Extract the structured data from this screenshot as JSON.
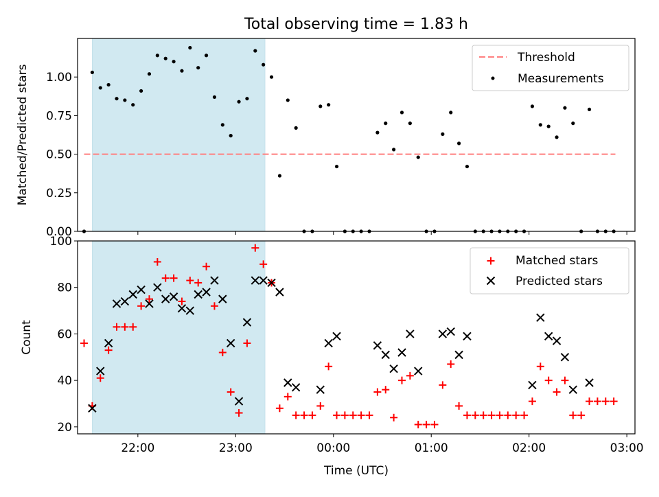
{
  "figure_title": "Total observing time = 1.83 h",
  "chart_data": [
    {
      "type": "scatter",
      "title": "Total observing time = 1.83 h",
      "xlabel": "",
      "ylabel": "Matched/Predicted stars",
      "x_unit": "time (UTC) HH:MM",
      "xlim": [
        "21:23",
        "03:05"
      ],
      "ylim": [
        0.0,
        1.25
      ],
      "yticks": [
        0.0,
        0.25,
        0.5,
        0.75,
        1.0
      ],
      "ytick_labels": [
        "0.00",
        "0.25",
        "0.50",
        "0.75",
        "1.00"
      ],
      "shaded_interval": [
        "21:32",
        "23:18"
      ],
      "shaded_color": "#add8e6",
      "legend_position": "upper right",
      "threshold": {
        "name": "Threshold",
        "y": 0.5,
        "x_range": [
          "21:27",
          "02:53"
        ],
        "color": "#ff7f7f",
        "style": "dashed"
      },
      "series": [
        {
          "name": "Measurements",
          "marker": "dot",
          "color": "#000000",
          "points": [
            [
              "21:27",
              0.0
            ],
            [
              "21:32",
              1.03
            ],
            [
              "21:37",
              0.93
            ],
            [
              "21:42",
              0.95
            ],
            [
              "21:47",
              0.86
            ],
            [
              "21:52",
              0.85
            ],
            [
              "21:57",
              0.82
            ],
            [
              "22:02",
              0.91
            ],
            [
              "22:07",
              1.02
            ],
            [
              "22:12",
              1.14
            ],
            [
              "22:17",
              1.12
            ],
            [
              "22:22",
              1.1
            ],
            [
              "22:27",
              1.04
            ],
            [
              "22:32",
              1.19
            ],
            [
              "22:37",
              1.06
            ],
            [
              "22:42",
              1.14
            ],
            [
              "22:47",
              0.87
            ],
            [
              "22:52",
              0.69
            ],
            [
              "22:57",
              0.62
            ],
            [
              "23:02",
              0.84
            ],
            [
              "23:07",
              0.86
            ],
            [
              "23:12",
              1.17
            ],
            [
              "23:17",
              1.08
            ],
            [
              "23:22",
              1.0
            ],
            [
              "23:27",
              0.36
            ],
            [
              "23:32",
              0.85
            ],
            [
              "23:37",
              0.67
            ],
            [
              "23:42",
              0.0
            ],
            [
              "23:47",
              0.0
            ],
            [
              "23:52",
              0.81
            ],
            [
              "23:57",
              0.82
            ],
            [
              "00:02",
              0.42
            ],
            [
              "00:07",
              0.0
            ],
            [
              "00:12",
              0.0
            ],
            [
              "00:17",
              0.0
            ],
            [
              "00:22",
              0.0
            ],
            [
              "00:27",
              0.64
            ],
            [
              "00:32",
              0.7
            ],
            [
              "00:37",
              0.53
            ],
            [
              "00:42",
              0.77
            ],
            [
              "00:47",
              0.7
            ],
            [
              "00:52",
              0.48
            ],
            [
              "00:57",
              0.0
            ],
            [
              "01:02",
              0.0
            ],
            [
              "01:07",
              0.63
            ],
            [
              "01:12",
              0.77
            ],
            [
              "01:17",
              0.57
            ],
            [
              "01:22",
              0.42
            ],
            [
              "01:27",
              0.0
            ],
            [
              "01:32",
              0.0
            ],
            [
              "01:37",
              0.0
            ],
            [
              "01:42",
              0.0
            ],
            [
              "01:47",
              0.0
            ],
            [
              "01:52",
              0.0
            ],
            [
              "01:57",
              0.0
            ],
            [
              "02:02",
              0.81
            ],
            [
              "02:07",
              0.69
            ],
            [
              "02:12",
              0.68
            ],
            [
              "02:17",
              0.61
            ],
            [
              "02:22",
              0.8
            ],
            [
              "02:27",
              0.7
            ],
            [
              "02:32",
              0.0
            ],
            [
              "02:37",
              0.79
            ],
            [
              "02:42",
              0.0
            ],
            [
              "02:47",
              0.0
            ],
            [
              "02:52",
              0.0
            ]
          ]
        }
      ]
    },
    {
      "type": "scatter",
      "title": "",
      "xlabel": "Time (UTC)",
      "ylabel": "Count",
      "x_unit": "time (UTC) HH:MM",
      "xlim": [
        "21:23",
        "03:05"
      ],
      "ylim": [
        17,
        100
      ],
      "yticks": [
        20,
        40,
        60,
        80,
        100
      ],
      "ytick_labels": [
        "20",
        "40",
        "60",
        "80",
        "100"
      ],
      "xticks": [
        "22:00",
        "23:00",
        "00:00",
        "01:00",
        "02:00",
        "03:00"
      ],
      "xtick_labels": [
        "22:00",
        "23:00",
        "00:00",
        "01:00",
        "02:00",
        "03:00"
      ],
      "shaded_interval": [
        "21:32",
        "23:18"
      ],
      "shaded_color": "#add8e6",
      "legend_position": "upper right",
      "series": [
        {
          "name": "Matched stars",
          "marker": "plus",
          "color": "#ff0000",
          "points": [
            [
              "21:27",
              56
            ],
            [
              "21:32",
              29
            ],
            [
              "21:37",
              41
            ],
            [
              "21:42",
              53
            ],
            [
              "21:47",
              63
            ],
            [
              "21:52",
              63
            ],
            [
              "21:57",
              63
            ],
            [
              "22:02",
              72
            ],
            [
              "22:07",
              75
            ],
            [
              "22:12",
              91
            ],
            [
              "22:17",
              84
            ],
            [
              "22:22",
              84
            ],
            [
              "22:27",
              74
            ],
            [
              "22:32",
              83
            ],
            [
              "22:37",
              82
            ],
            [
              "22:42",
              89
            ],
            [
              "22:47",
              72
            ],
            [
              "22:52",
              52
            ],
            [
              "22:57",
              35
            ],
            [
              "23:02",
              26
            ],
            [
              "23:07",
              56
            ],
            [
              "23:12",
              97
            ],
            [
              "23:17",
              90
            ],
            [
              "23:22",
              82
            ],
            [
              "23:27",
              28
            ],
            [
              "23:32",
              33
            ],
            [
              "23:37",
              25
            ],
            [
              "23:42",
              25
            ],
            [
              "23:47",
              25
            ],
            [
              "23:52",
              29
            ],
            [
              "23:57",
              46
            ],
            [
              "00:02",
              25
            ],
            [
              "00:07",
              25
            ],
            [
              "00:12",
              25
            ],
            [
              "00:17",
              25
            ],
            [
              "00:22",
              25
            ],
            [
              "00:27",
              35
            ],
            [
              "00:32",
              36
            ],
            [
              "00:37",
              24
            ],
            [
              "00:42",
              40
            ],
            [
              "00:47",
              42
            ],
            [
              "00:52",
              21
            ],
            [
              "00:57",
              21
            ],
            [
              "01:02",
              21
            ],
            [
              "01:07",
              38
            ],
            [
              "01:12",
              47
            ],
            [
              "01:17",
              29
            ],
            [
              "01:22",
              25
            ],
            [
              "01:27",
              25
            ],
            [
              "01:32",
              25
            ],
            [
              "01:37",
              25
            ],
            [
              "01:42",
              25
            ],
            [
              "01:47",
              25
            ],
            [
              "01:52",
              25
            ],
            [
              "01:57",
              25
            ],
            [
              "02:02",
              31
            ],
            [
              "02:07",
              46
            ],
            [
              "02:12",
              40
            ],
            [
              "02:17",
              35
            ],
            [
              "02:22",
              40
            ],
            [
              "02:27",
              25
            ],
            [
              "02:32",
              25
            ],
            [
              "02:37",
              31
            ],
            [
              "02:42",
              31
            ],
            [
              "02:47",
              31
            ],
            [
              "02:52",
              31
            ]
          ]
        },
        {
          "name": "Predicted stars",
          "marker": "x",
          "color": "#000000",
          "points": [
            [
              "21:32",
              28
            ],
            [
              "21:37",
              44
            ],
            [
              "21:42",
              56
            ],
            [
              "21:47",
              73
            ],
            [
              "21:52",
              74
            ],
            [
              "21:57",
              77
            ],
            [
              "22:02",
              79
            ],
            [
              "22:07",
              73
            ],
            [
              "22:12",
              80
            ],
            [
              "22:17",
              75
            ],
            [
              "22:22",
              76
            ],
            [
              "22:27",
              71
            ],
            [
              "22:32",
              70
            ],
            [
              "22:37",
              77
            ],
            [
              "22:42",
              78
            ],
            [
              "22:47",
              83
            ],
            [
              "22:52",
              75
            ],
            [
              "22:57",
              56
            ],
            [
              "23:02",
              31
            ],
            [
              "23:07",
              65
            ],
            [
              "23:12",
              83
            ],
            [
              "23:17",
              83
            ],
            [
              "23:22",
              82
            ],
            [
              "23:27",
              78
            ],
            [
              "23:32",
              39
            ],
            [
              "23:37",
              37
            ],
            [
              "23:52",
              36
            ],
            [
              "23:57",
              56
            ],
            [
              "00:02",
              59
            ],
            [
              "00:27",
              55
            ],
            [
              "00:32",
              51
            ],
            [
              "00:37",
              45
            ],
            [
              "00:42",
              52
            ],
            [
              "00:47",
              60
            ],
            [
              "00:52",
              44
            ],
            [
              "01:07",
              60
            ],
            [
              "01:12",
              61
            ],
            [
              "01:17",
              51
            ],
            [
              "01:22",
              59
            ],
            [
              "02:02",
              38
            ],
            [
              "02:07",
              67
            ],
            [
              "02:12",
              59
            ],
            [
              "02:17",
              57
            ],
            [
              "02:22",
              50
            ],
            [
              "02:27",
              36
            ],
            [
              "02:37",
              39
            ]
          ]
        }
      ]
    }
  ]
}
